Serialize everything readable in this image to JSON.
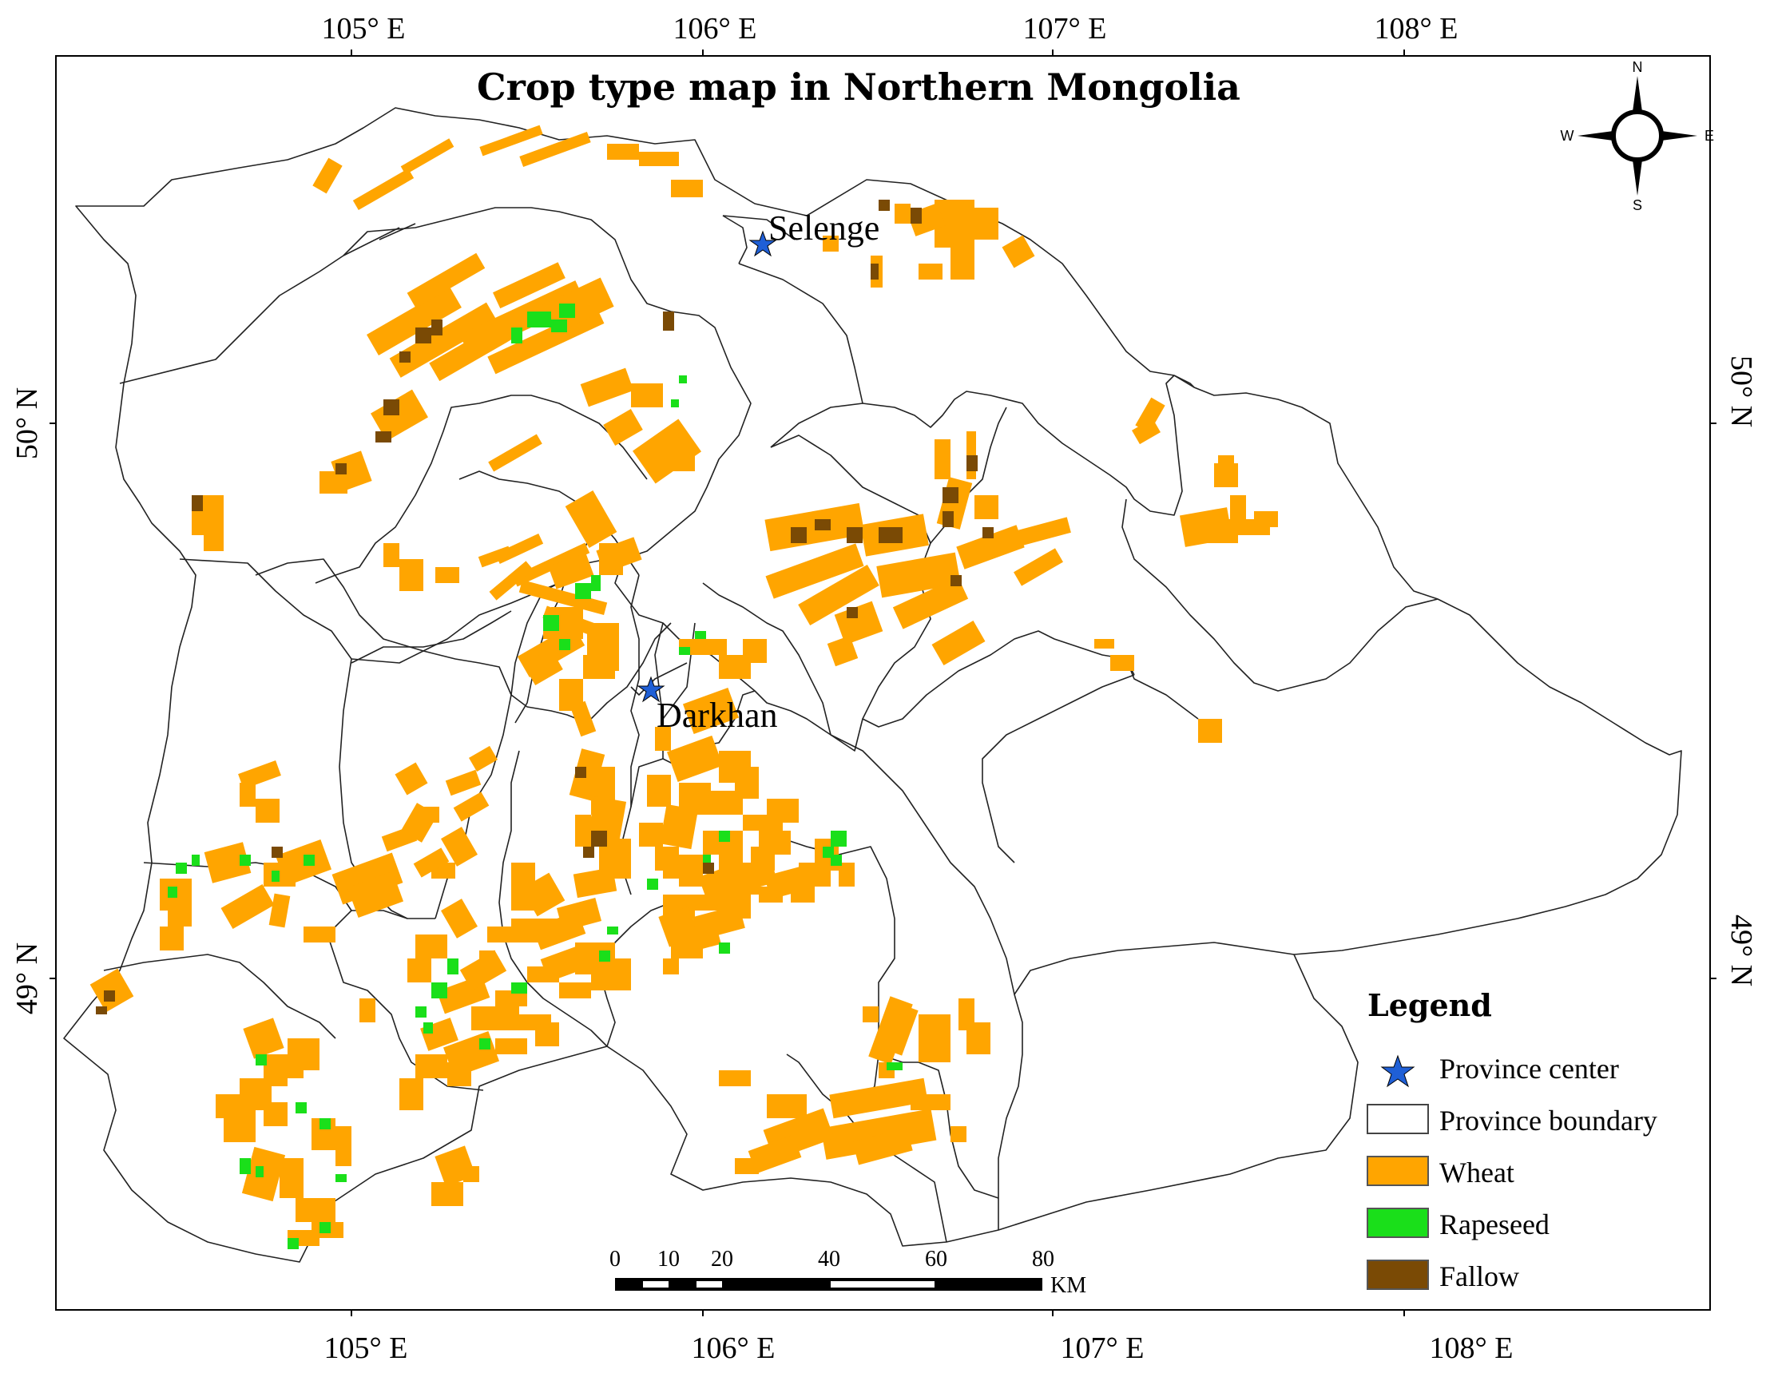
{
  "map": {
    "title": "Crop type map in Northern Mongolia",
    "top_lon_labels": [
      "105° E",
      "106° E",
      "107° E",
      "108° E"
    ],
    "bottom_lon_labels": [
      "105° E",
      "106° E",
      "107° E",
      "108° E"
    ],
    "left_lat_labels": [
      "50° N",
      "49° N"
    ],
    "right_lat_labels": [
      "50° N",
      "49° N"
    ],
    "cities": [
      {
        "name": "Selenge"
      },
      {
        "name": "Darkhan"
      }
    ]
  },
  "compass": {
    "n": "N",
    "s": "S",
    "e": "E",
    "w": "W"
  },
  "scale": {
    "ticks": [
      "0",
      "10",
      "20",
      "40",
      "60",
      "80"
    ],
    "unit": "KM"
  },
  "legend": {
    "title": "Legend",
    "items": [
      {
        "label": "Province center",
        "color": "#1f5fd6"
      },
      {
        "label": "Province boundary",
        "color": "#ffffff"
      },
      {
        "label": "Wheat",
        "color": "#ffa500"
      },
      {
        "label": "Rapeseed",
        "color": "#1adf1a"
      },
      {
        "label": "Fallow",
        "color": "#7a4a05"
      }
    ]
  },
  "colors": {
    "wheat": "#ffa500",
    "rapeseed": "#1adf1a",
    "fallow": "#7a4a05",
    "center": "#1f5fd6"
  }
}
